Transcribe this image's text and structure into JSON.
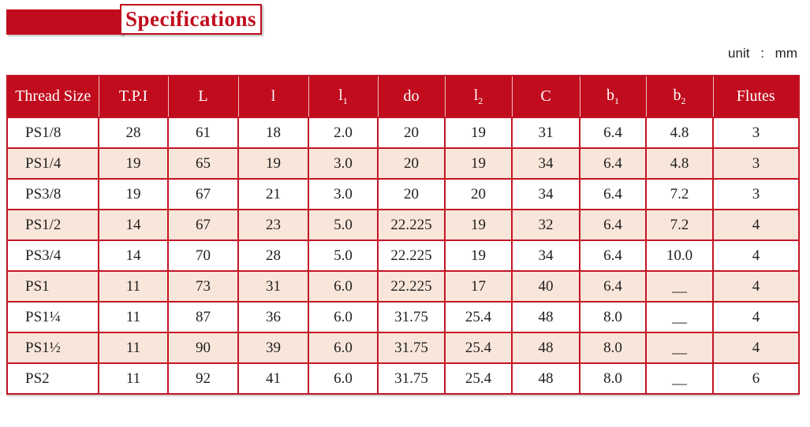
{
  "title": {
    "text": "Specifications"
  },
  "unit": {
    "label": "unit",
    "colon": ":",
    "value": "mm"
  },
  "colors": {
    "accent_red": "#c10c1d",
    "border_red": "#c41425",
    "row_stripe_pink": "#f9e6da"
  },
  "table": {
    "columns": [
      {
        "label": "Thread Size",
        "sub": ""
      },
      {
        "label": "T.P.I",
        "sub": ""
      },
      {
        "label": "L",
        "sub": ""
      },
      {
        "label": "l",
        "sub": ""
      },
      {
        "label": "l",
        "sub": "1"
      },
      {
        "label": "do",
        "sub": ""
      },
      {
        "label": "l",
        "sub": "2"
      },
      {
        "label": "C",
        "sub": ""
      },
      {
        "label": "b",
        "sub": "1"
      },
      {
        "label": "b",
        "sub": "2"
      },
      {
        "label": "Flutes",
        "sub": ""
      }
    ],
    "rows": [
      [
        "PS1/8",
        "28",
        "61",
        "18",
        "2.0",
        "20",
        "19",
        "31",
        "6.4",
        "4.8",
        "3"
      ],
      [
        "PS1/4",
        "19",
        "65",
        "19",
        "3.0",
        "20",
        "19",
        "34",
        "6.4",
        "4.8",
        "3"
      ],
      [
        "PS3/8",
        "19",
        "67",
        "21",
        "3.0",
        "20",
        "20",
        "34",
        "6.4",
        "7.2",
        "3"
      ],
      [
        "PS1/2",
        "14",
        "67",
        "23",
        "5.0",
        "22.225",
        "19",
        "32",
        "6.4",
        "7.2",
        "4"
      ],
      [
        "PS3/4",
        "14",
        "70",
        "28",
        "5.0",
        "22.225",
        "19",
        "34",
        "6.4",
        "10.0",
        "4"
      ],
      [
        "PS1",
        "11",
        "73",
        "31",
        "6.0",
        "22.225",
        "17",
        "40",
        "6.4",
        "__",
        "4"
      ],
      [
        "PS1¼",
        "11",
        "87",
        "36",
        "6.0",
        "31.75",
        "25.4",
        "48",
        "8.0",
        "__",
        "4"
      ],
      [
        "PS1½",
        "11",
        "90",
        "39",
        "6.0",
        "31.75",
        "25.4",
        "48",
        "8.0",
        "__",
        "4"
      ],
      [
        "PS2",
        "11",
        "92",
        "41",
        "6.0",
        "31.75",
        "25.4",
        "48",
        "8.0",
        "__",
        "6"
      ]
    ]
  }
}
